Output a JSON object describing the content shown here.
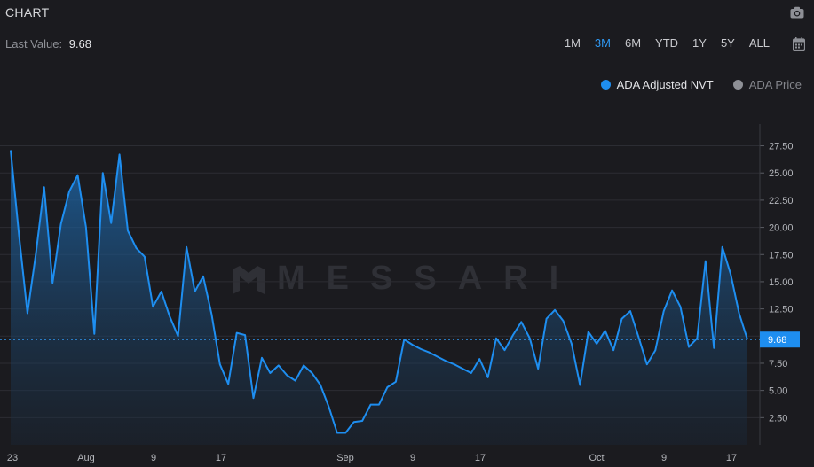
{
  "header": {
    "title": "CHART",
    "camera_icon": "camera-icon"
  },
  "toolbar": {
    "last_value_label": "Last Value:",
    "last_value": "9.68",
    "ranges": [
      "1M",
      "3M",
      "6M",
      "YTD",
      "1Y",
      "5Y",
      "ALL"
    ],
    "active_range": "3M",
    "calendar_icon": "calendar-icon"
  },
  "legend": [
    {
      "label": "ADA Adjusted NVT",
      "color": "#1e8ef0",
      "active": true
    },
    {
      "label": "ADA Price",
      "color": "#8e9096",
      "active": false
    }
  ],
  "watermark": "MESSARI",
  "chart_data": {
    "type": "area",
    "series": [
      {
        "name": "ADA Adjusted NVT",
        "color": "#1e8ef0",
        "x_days": [
          0,
          1,
          2,
          3,
          4,
          5,
          6,
          7,
          8,
          9,
          10,
          11,
          12,
          13,
          14,
          15,
          16,
          17,
          18,
          19,
          20,
          21,
          22,
          23,
          24,
          25,
          26,
          27,
          28,
          29,
          30,
          31,
          32,
          33,
          34,
          35,
          36,
          37,
          38,
          39,
          40,
          41,
          42,
          43,
          44,
          45,
          46,
          47,
          48,
          49,
          50,
          51,
          52,
          53,
          54,
          55,
          56,
          57,
          58,
          59,
          60,
          61,
          62,
          63,
          64,
          65,
          66,
          67,
          68,
          69,
          70,
          71,
          72,
          73,
          74,
          75,
          76,
          77,
          78,
          79,
          80,
          81,
          82,
          83,
          84,
          85,
          86,
          87,
          88
        ],
        "values": [
          27.1,
          19.3,
          12.1,
          17.5,
          23.7,
          14.9,
          20.3,
          23.3,
          24.8,
          20.0,
          10.2,
          25.0,
          20.4,
          26.7,
          19.7,
          18.1,
          17.3,
          12.7,
          14.1,
          11.8,
          10.0,
          18.2,
          14.1,
          15.5,
          12.0,
          7.4,
          5.6,
          10.3,
          10.1,
          4.3,
          8.0,
          6.6,
          7.3,
          6.4,
          5.9,
          7.3,
          6.6,
          5.5,
          3.5,
          1.1,
          1.1,
          2.1,
          2.2,
          3.7,
          3.7,
          5.3,
          5.8,
          9.7,
          9.2,
          8.8,
          8.5,
          8.1,
          7.7,
          7.4,
          7.0,
          6.6,
          7.9,
          6.2,
          9.8,
          8.7,
          10.1,
          11.3,
          9.8,
          7.0,
          11.6,
          12.4,
          11.4,
          9.3,
          5.5,
          10.4,
          9.3,
          10.5,
          8.7,
          11.6,
          12.3,
          9.9,
          7.4,
          8.7,
          12.3,
          14.2,
          12.7,
          9.0,
          9.8,
          16.9,
          8.9,
          18.2,
          15.7,
          12.1,
          9.68
        ]
      },
      {
        "name": "ADA Price",
        "color": "#8e9096",
        "values": []
      }
    ],
    "x_tick_labels": [
      "23",
      "Aug",
      "9",
      "17",
      "Sep",
      "9",
      "17",
      "Oct",
      "9",
      "17"
    ],
    "y_ticks": [
      2.5,
      5.0,
      7.5,
      10.0,
      12.5,
      15.0,
      17.5,
      20.0,
      22.5,
      25.0,
      27.5
    ],
    "y_tick_labels": [
      "2.50",
      "5.00",
      "7.50",
      "10.00",
      "12.50",
      "15.00",
      "17.50",
      "20.00",
      "22.50",
      "25.00",
      "27.50"
    ],
    "ylim": [
      0,
      29.5
    ],
    "last_value_marker": 9.68,
    "last_value_label": "9.68",
    "grid": true
  }
}
